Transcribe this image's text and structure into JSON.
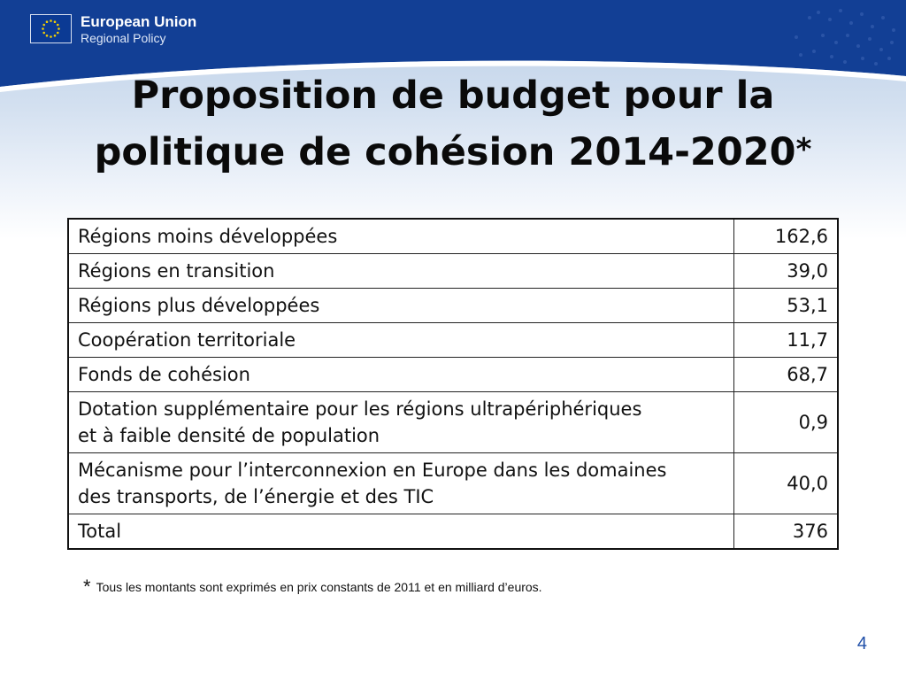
{
  "colors": {
    "banner": "#123f95",
    "banner_edge": "#ffffff",
    "logo_bg": "#0b3a94",
    "stars": "#f5d000",
    "page_number": "#1f4fa8"
  },
  "header": {
    "logo_icon": "eu-flag-icon",
    "org_name": "European Union",
    "org_subtitle": "Regional Policy"
  },
  "slide": {
    "title_line1": "Proposition de budget pour la",
    "title_line2": "politique de cohésion 2014-2020",
    "title_marker": "*",
    "footnote_marker": "*",
    "footnote": "Tous les montants sont exprimés en prix constants de 2011 et en milliard d’euros.",
    "page_number": "4"
  },
  "table": {
    "rows": [
      {
        "label": "Régions moins développées",
        "value": "162,6"
      },
      {
        "label": "Régions en transition",
        "value": "39,0"
      },
      {
        "label": "Régions plus développées",
        "value": "53,1"
      },
      {
        "label": "Coopération territoriale",
        "value": "11,7"
      },
      {
        "label": "Fonds de cohésion",
        "value": "68,7"
      },
      {
        "label_line1": "Dotation supplémentaire pour les régions ultrapériphériques",
        "label_line2": "et à faible densité de population",
        "value": "0,9"
      },
      {
        "label_line1": "Mécanisme pour l’interconnexion en Europe dans les domaines",
        "label_line2": "des transports, de l’énergie et des TIC",
        "value": "40,0"
      },
      {
        "label": "Total",
        "value": "376"
      }
    ]
  }
}
